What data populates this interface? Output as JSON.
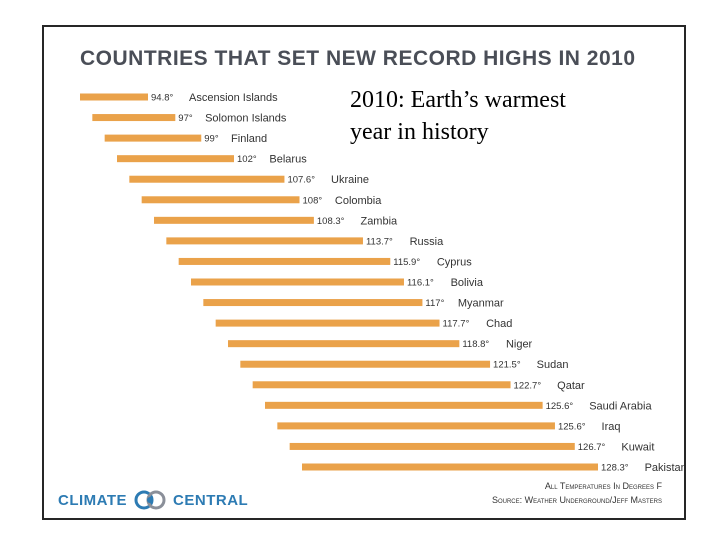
{
  "slide": {
    "overlay_line1": "2010: Earth’s warmest",
    "overlay_line2": "year in history"
  },
  "chart_data": {
    "type": "bar",
    "title": "COUNTRIES THAT SET NEW RECORD HIGHS IN 2010",
    "categories": [
      "Ascension Islands",
      "Solomon Islands",
      "Finland",
      "Belarus",
      "Ukraine",
      "Colombia",
      "Zambia",
      "Russia",
      "Cyprus",
      "Bolivia",
      "Myanmar",
      "Chad",
      "Niger",
      "Sudan",
      "Qatar",
      "Saudi Arabia",
      "Iraq",
      "Kuwait",
      "Pakistan"
    ],
    "values": [
      94.8,
      97,
      99,
      102,
      107.6,
      108,
      108.3,
      113.7,
      115.9,
      116.1,
      117,
      117.7,
      118.8,
      121.5,
      122.7,
      125.6,
      125.6,
      126.7,
      128.3
    ],
    "value_labels": [
      "94.8°",
      "97°",
      "99°",
      "102°",
      "107.6°",
      "108°",
      "108.3°",
      "113.7°",
      "115.9°",
      "116.1°",
      "117°",
      "117.7°",
      "118.8°",
      "121.5°",
      "122.7°",
      "125.6°",
      "125.6°",
      "126.7°",
      "128.3°"
    ],
    "unit_note": "All Temperatures In Degrees F",
    "source": "Source: Weather Underground/Jeff Masters",
    "bar_color": "#eaa24a",
    "legend": "none",
    "grid": false
  },
  "logo": {
    "left": "CLIMATE",
    "right": "CENTRAL",
    "color": "#2d7bb3"
  }
}
